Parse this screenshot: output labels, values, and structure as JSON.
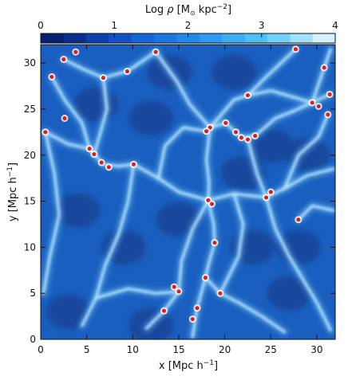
{
  "chart_data": {
    "type": "heatmap",
    "colorbar": {
      "label": "Log ρ [M⊙ kpc⁻²]",
      "label_parts": {
        "prefix": "Log ",
        "symbol": "ρ",
        "unit_open": " [M",
        "unit_sub": "⊙",
        "unit_mid": " kpc",
        "unit_sup": "−2",
        "unit_close": "]"
      },
      "range": [
        0,
        4
      ],
      "ticks": [
        "0",
        "1",
        "2",
        "3",
        "4"
      ],
      "colors": [
        "#061f6e",
        "#0a2f8f",
        "#0d40ad",
        "#1052c4",
        "#1464d6",
        "#1a77e2",
        "#2189ea",
        "#2b9cf1",
        "#39aef6",
        "#4dbff9",
        "#6fd0fb",
        "#a2e1fd",
        "#d6f2ff"
      ],
      "orientation": "horizontal",
      "position": "top"
    },
    "xlabel": "x [Mpc h⁻¹]",
    "xlabel_parts": {
      "main": "x [Mpc h",
      "sup": "−1",
      "close": "]"
    },
    "ylabel": "y [Mpc h⁻¹]",
    "ylabel_parts": {
      "main": "y [Mpc h",
      "sup": "−1",
      "close": "]"
    },
    "xlim": [
      0,
      32
    ],
    "ylim": [
      0,
      32
    ],
    "xticks": [
      0,
      5,
      10,
      15,
      20,
      25,
      30
    ],
    "yticks": [
      0,
      5,
      10,
      15,
      20,
      25,
      30
    ],
    "xtick_labels": [
      "0",
      "5",
      "10",
      "15",
      "20",
      "25",
      "30"
    ],
    "ytick_labels": [
      "0",
      "5",
      "10",
      "15",
      "20",
      "25",
      "30"
    ],
    "colors": {
      "background": "#1a5fbf",
      "void": "#14479a",
      "filament": "#bfe6ff",
      "node": "#e0201f"
    },
    "nodes": [
      [
        0.5,
        22.5
      ],
      [
        1.2,
        28.5
      ],
      [
        2.5,
        30.4
      ],
      [
        3.8,
        31.2
      ],
      [
        5.3,
        20.7
      ],
      [
        5.8,
        20.1
      ],
      [
        6.8,
        28.4
      ],
      [
        9.4,
        29.1
      ],
      [
        6.6,
        19.2
      ],
      [
        7.4,
        18.7
      ],
      [
        12.5,
        31.2
      ],
      [
        10.1,
        19.0
      ],
      [
        15.0,
        5.2
      ],
      [
        14.5,
        5.7
      ],
      [
        17.0,
        3.4
      ],
      [
        16.5,
        2.2
      ],
      [
        17.9,
        6.7
      ],
      [
        18.2,
        15.1
      ],
      [
        18.6,
        14.7
      ],
      [
        18.4,
        23.0
      ],
      [
        18.0,
        22.6
      ],
      [
        20.1,
        23.5
      ],
      [
        21.2,
        22.5
      ],
      [
        21.8,
        21.9
      ],
      [
        22.5,
        21.7
      ],
      [
        23.3,
        22.1
      ],
      [
        24.5,
        15.4
      ],
      [
        25.0,
        16.0
      ],
      [
        28.0,
        13.0
      ],
      [
        29.5,
        25.7
      ],
      [
        30.2,
        25.3
      ],
      [
        30.8,
        29.5
      ],
      [
        31.2,
        24.4
      ],
      [
        31.4,
        26.6
      ],
      [
        27.7,
        31.5
      ],
      [
        22.5,
        26.5
      ],
      [
        18.9,
        10.5
      ],
      [
        19.5,
        5.0
      ],
      [
        13.4,
        3.1
      ],
      [
        2.6,
        24.0
      ]
    ],
    "filaments": [
      [
        [
          0.5,
          22.5
        ],
        [
          3.0,
          21.2
        ],
        [
          5.3,
          20.7
        ],
        [
          6.8,
          19.0
        ],
        [
          8.5,
          18.8
        ],
        [
          10.1,
          19.0
        ],
        [
          12.8,
          17.5
        ],
        [
          15.0,
          16.0
        ],
        [
          18.2,
          15.1
        ],
        [
          21.0,
          15.8
        ],
        [
          24.5,
          15.4
        ],
        [
          26.5,
          16.4
        ],
        [
          29.0,
          17.8
        ],
        [
          31.8,
          18.5
        ]
      ],
      [
        [
          5.3,
          20.7
        ],
        [
          4.5,
          23.5
        ],
        [
          2.6,
          26.0
        ],
        [
          1.2,
          28.5
        ]
      ],
      [
        [
          2.5,
          30.4
        ],
        [
          4.5,
          29.4
        ],
        [
          6.8,
          28.4
        ],
        [
          9.4,
          29.1
        ],
        [
          12.5,
          31.2
        ]
      ],
      [
        [
          6.8,
          28.4
        ],
        [
          7.2,
          25.0
        ],
        [
          6.5,
          22.5
        ],
        [
          5.8,
          20.1
        ]
      ],
      [
        [
          18.4,
          23.0
        ],
        [
          20.1,
          23.5
        ],
        [
          21.8,
          21.9
        ],
        [
          23.3,
          22.1
        ],
        [
          25.5,
          24.0
        ],
        [
          27.5,
          24.8
        ],
        [
          29.5,
          25.7
        ],
        [
          31.4,
          26.6
        ]
      ],
      [
        [
          18.4,
          23.0
        ],
        [
          18.0,
          19.5
        ],
        [
          18.3,
          17.0
        ],
        [
          18.2,
          15.1
        ]
      ],
      [
        [
          18.4,
          23.0
        ],
        [
          16.2,
          25.5
        ],
        [
          14.8,
          28.0
        ],
        [
          12.5,
          31.2
        ]
      ],
      [
        [
          18.4,
          23.0
        ],
        [
          21.0,
          26.0
        ],
        [
          22.5,
          26.5
        ],
        [
          24.5,
          28.5
        ],
        [
          27.7,
          31.5
        ]
      ],
      [
        [
          22.5,
          26.5
        ],
        [
          25.0,
          27.0
        ],
        [
          29.5,
          25.7
        ]
      ],
      [
        [
          29.5,
          25.7
        ],
        [
          30.8,
          29.5
        ],
        [
          31.5,
          31.5
        ]
      ],
      [
        [
          18.2,
          15.1
        ],
        [
          18.8,
          12.5
        ],
        [
          18.9,
          10.5
        ],
        [
          18.2,
          8.0
        ],
        [
          17.9,
          6.7
        ],
        [
          17.0,
          3.4
        ],
        [
          16.5,
          0.3
        ]
      ],
      [
        [
          18.2,
          15.1
        ],
        [
          16.5,
          12.0
        ],
        [
          15.3,
          8.5
        ],
        [
          15.0,
          5.2
        ],
        [
          13.4,
          3.1
        ],
        [
          11.5,
          1.2
        ]
      ],
      [
        [
          17.9,
          6.7
        ],
        [
          19.5,
          5.0
        ],
        [
          21.5,
          4.0
        ],
        [
          24.0,
          2.5
        ],
        [
          26.5,
          0.8
        ]
      ],
      [
        [
          24.5,
          15.4
        ],
        [
          25.5,
          12.0
        ],
        [
          27.0,
          9.0
        ],
        [
          28.5,
          6.5
        ],
        [
          30.0,
          4.0
        ],
        [
          31.5,
          1.0
        ]
      ],
      [
        [
          28.0,
          13.0
        ],
        [
          29.5,
          14.5
        ],
        [
          31.8,
          14.0
        ]
      ],
      [
        [
          10.1,
          19.0
        ],
        [
          9.5,
          15.0
        ],
        [
          8.5,
          11.5
        ],
        [
          7.0,
          8.0
        ],
        [
          6.0,
          4.5
        ],
        [
          4.5,
          1.5
        ]
      ],
      [
        [
          0.5,
          22.5
        ],
        [
          1.5,
          18.0
        ],
        [
          2.0,
          13.5
        ],
        [
          1.0,
          9.0
        ],
        [
          0.3,
          5.0
        ]
      ],
      [
        [
          6.0,
          4.5
        ],
        [
          9.5,
          5.5
        ],
        [
          12.5,
          5.0
        ],
        [
          15.0,
          5.2
        ]
      ],
      [
        [
          24.5,
          15.4
        ],
        [
          23.5,
          18.0
        ],
        [
          22.5,
          21.7
        ]
      ],
      [
        [
          12.8,
          17.5
        ],
        [
          13.5,
          21.0
        ],
        [
          15.5,
          23.0
        ],
        [
          18.0,
          22.6
        ]
      ],
      [
        [
          26.5,
          16.4
        ],
        [
          28.0,
          20.0
        ],
        [
          30.2,
          22.0
        ],
        [
          31.2,
          24.4
        ]
      ],
      [
        [
          21.0,
          15.8
        ],
        [
          22.0,
          12.5
        ],
        [
          21.5,
          9.0
        ],
        [
          19.5,
          5.0
        ]
      ]
    ]
  }
}
